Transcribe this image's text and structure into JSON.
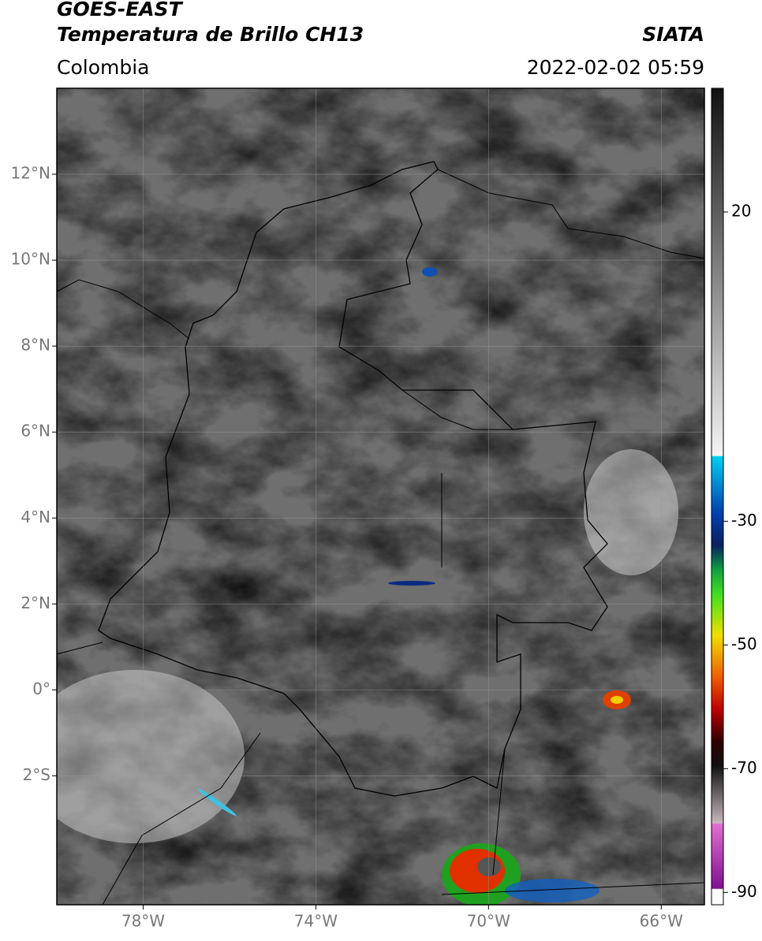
{
  "header": {
    "satellite": "GOES-EAST",
    "product": "Temperatura de Brillo CH13",
    "source": "SIATA",
    "region": "Colombia",
    "datetime": "2022-02-02 05:59"
  },
  "map": {
    "xlim": [
      -80,
      -65
    ],
    "ylim": [
      -5,
      14
    ],
    "xticks": [
      {
        "value": -78,
        "label": "78°W"
      },
      {
        "value": -74,
        "label": "74°W"
      },
      {
        "value": -70,
        "label": "70°W"
      },
      {
        "value": -66,
        "label": "66°W"
      }
    ],
    "yticks": [
      {
        "value": 12,
        "label": "12°N"
      },
      {
        "value": 10,
        "label": "10°N"
      },
      {
        "value": 8,
        "label": "8°N"
      },
      {
        "value": 6,
        "label": "6°N"
      },
      {
        "value": 4,
        "label": "4°N"
      },
      {
        "value": 2,
        "label": "2°N"
      },
      {
        "value": 0,
        "label": "0°"
      },
      {
        "value": -2,
        "label": "2°S"
      }
    ],
    "grid": true
  },
  "colorbar": {
    "lim": [
      -92,
      40
    ],
    "ticks": [
      20,
      -30,
      -50,
      -70,
      -90
    ]
  }
}
